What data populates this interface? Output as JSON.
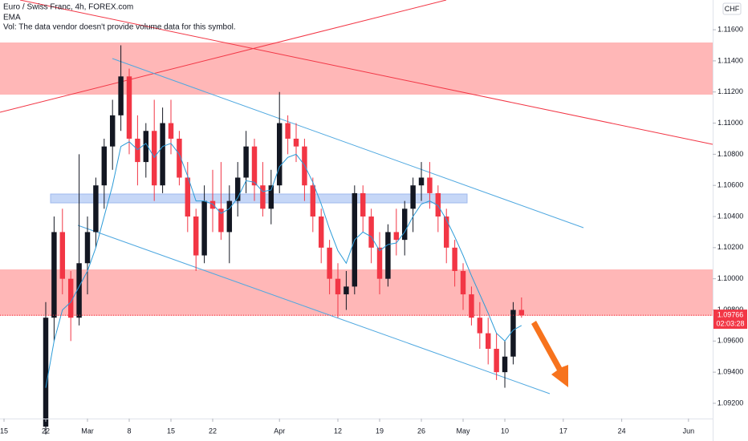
{
  "chart_data": {
    "type": "candlestick",
    "title": "Euro / Swiss Franc, 4h, FOREX.com",
    "indicator": "EMA",
    "volume_note": "Vol: The data vendor doesn't provide volume data for this symbol.",
    "currency": "CHF",
    "last_price": {
      "value": 1.09766,
      "label": "1.09766"
    },
    "countdown": "02:03:28",
    "up_color": "#131722",
    "down_color": "#f23645",
    "ema_color": "#2b9bd8",
    "grid": false,
    "xlim": [
      -0.48,
      84.9
    ],
    "ylim": [
      1.09102,
      1.11791
    ],
    "xticks": [
      {
        "value": 0,
        "label": "15"
      },
      {
        "value": 5,
        "label": "22"
      },
      {
        "value": 10,
        "label": "Mar"
      },
      {
        "value": 15,
        "label": "8"
      },
      {
        "value": 20,
        "label": "15"
      },
      {
        "value": 25,
        "label": "22"
      },
      {
        "value": 33,
        "label": "Apr"
      },
      {
        "value": 40,
        "label": "12"
      },
      {
        "value": 45,
        "label": "19"
      },
      {
        "value": 50,
        "label": "26"
      },
      {
        "value": 55,
        "label": "May"
      },
      {
        "value": 60,
        "label": "10"
      },
      {
        "value": 67,
        "label": "17"
      },
      {
        "value": 74,
        "label": "24"
      },
      {
        "value": 82,
        "label": "Jun"
      }
    ],
    "yticks": [
      {
        "value": 1.092,
        "label": "1.09200"
      },
      {
        "value": 1.094,
        "label": "1.09400"
      },
      {
        "value": 1.096,
        "label": "1.09600"
      },
      {
        "value": 1.098,
        "label": "1.09800"
      },
      {
        "value": 1.1,
        "label": "1.10000"
      },
      {
        "value": 1.102,
        "label": "1.10200"
      },
      {
        "value": 1.104,
        "label": "1.10400"
      },
      {
        "value": 1.106,
        "label": "1.10600"
      },
      {
        "value": 1.108,
        "label": "1.10800"
      },
      {
        "value": 1.11,
        "label": "1.11000"
      },
      {
        "value": 1.112,
        "label": "1.11200"
      },
      {
        "value": 1.114,
        "label": "1.11400"
      },
      {
        "value": 1.116,
        "label": "1.11600"
      }
    ],
    "x": [
      5,
      6,
      7,
      8,
      9,
      10,
      11,
      12,
      13,
      14,
      15,
      16,
      17,
      18,
      19,
      20,
      21,
      22,
      23,
      24,
      25,
      26,
      27,
      28,
      29,
      30,
      31,
      32,
      33,
      34,
      35,
      36,
      37,
      38,
      39,
      40,
      41,
      42,
      43,
      44,
      45,
      46,
      47,
      48,
      49,
      50,
      51,
      52,
      53,
      54,
      55,
      56,
      57,
      58,
      59,
      60,
      61,
      62
    ],
    "open": [
      1.0905,
      1.0975,
      1.103,
      1.1,
      1.0975,
      1.101,
      1.103,
      1.106,
      1.1085,
      1.1105,
      1.113,
      1.109,
      1.1075,
      1.1095,
      1.106,
      1.11,
      1.109,
      1.1065,
      1.104,
      1.1015,
      1.105,
      1.1045,
      1.103,
      1.105,
      1.1065,
      1.1085,
      1.106,
      1.1045,
      1.106,
      1.11,
      1.109,
      1.1085,
      1.106,
      1.104,
      1.102,
      1.1,
      1.099,
      1.0995,
      1.1055,
      1.104,
      1.102,
      1.1,
      1.103,
      1.1025,
      1.1045,
      1.106,
      1.1065,
      1.1055,
      1.104,
      1.102,
      1.1005,
      1.099,
      1.0975,
      1.0965,
      1.0955,
      1.094,
      1.095,
      1.098
    ],
    "high": [
      1.0985,
      1.104,
      1.1045,
      1.1005,
      1.108,
      1.104,
      1.1065,
      1.109,
      1.1115,
      1.115,
      1.1135,
      1.1105,
      1.11,
      1.1115,
      1.111,
      1.1115,
      1.1095,
      1.1075,
      1.1045,
      1.106,
      1.107,
      1.1075,
      1.106,
      1.1075,
      1.1095,
      1.109,
      1.1075,
      1.107,
      1.112,
      1.1105,
      1.11,
      1.109,
      1.1065,
      1.1045,
      1.1025,
      1.101,
      1.1005,
      1.106,
      1.106,
      1.1045,
      1.103,
      1.1035,
      1.1045,
      1.105,
      1.1065,
      1.1075,
      1.1075,
      1.106,
      1.1045,
      1.1025,
      1.101,
      1.0995,
      1.0985,
      1.0975,
      1.0965,
      1.096,
      1.0985,
      1.0988
    ],
    "low": [
      1.09,
      1.096,
      1.099,
      1.096,
      1.097,
      1.099,
      1.102,
      1.1045,
      1.107,
      1.1095,
      1.108,
      1.106,
      1.1065,
      1.105,
      1.1055,
      1.108,
      1.106,
      1.103,
      1.1005,
      1.101,
      1.103,
      1.1025,
      1.101,
      1.104,
      1.1055,
      1.105,
      1.104,
      1.1035,
      1.1055,
      1.108,
      1.1075,
      1.105,
      1.103,
      1.101,
      1.099,
      1.0975,
      1.098,
      1.099,
      1.103,
      1.101,
      1.099,
      1.0995,
      1.1015,
      1.1015,
      1.103,
      1.105,
      1.1045,
      1.103,
      1.101,
      1.0995,
      1.098,
      1.097,
      1.0955,
      1.0945,
      1.0935,
      1.093,
      1.0945,
      1.0975
    ],
    "close": [
      1.0975,
      1.103,
      1.1,
      1.0975,
      1.101,
      1.103,
      1.106,
      1.1085,
      1.1105,
      1.113,
      1.109,
      1.1075,
      1.1095,
      1.106,
      1.11,
      1.109,
      1.1065,
      1.104,
      1.1015,
      1.105,
      1.1045,
      1.103,
      1.105,
      1.1065,
      1.1085,
      1.106,
      1.1045,
      1.106,
      1.11,
      1.109,
      1.1085,
      1.106,
      1.104,
      1.102,
      1.1,
      1.099,
      1.0995,
      1.1055,
      1.104,
      1.102,
      1.1,
      1.103,
      1.1025,
      1.1045,
      1.106,
      1.1065,
      1.1055,
      1.104,
      1.102,
      1.1005,
      1.099,
      1.0975,
      1.0965,
      1.0955,
      1.094,
      1.095,
      1.098,
      1.09766
    ],
    "ema": [
      1.093,
      1.096,
      1.098,
      1.0985,
      1.0995,
      1.1005,
      1.102,
      1.104,
      1.106,
      1.1085,
      1.1088,
      1.1083,
      1.1087,
      1.1078,
      1.1085,
      1.1087,
      1.108,
      1.1066,
      1.105,
      1.105,
      1.1048,
      1.1042,
      1.1045,
      1.1052,
      1.1063,
      1.1062,
      1.1056,
      1.1057,
      1.1072,
      1.1078,
      1.108,
      1.1073,
      1.1062,
      1.1048,
      1.1032,
      1.1018,
      1.101,
      1.1025,
      1.103,
      1.1027,
      1.1018,
      1.1022,
      1.1023,
      1.103,
      1.104,
      1.1048,
      1.105,
      1.1047,
      1.1038,
      1.1027,
      1.1015,
      1.1002,
      1.099,
      1.0978,
      1.0965,
      1.096,
      1.0967,
      1.097
    ]
  }
}
